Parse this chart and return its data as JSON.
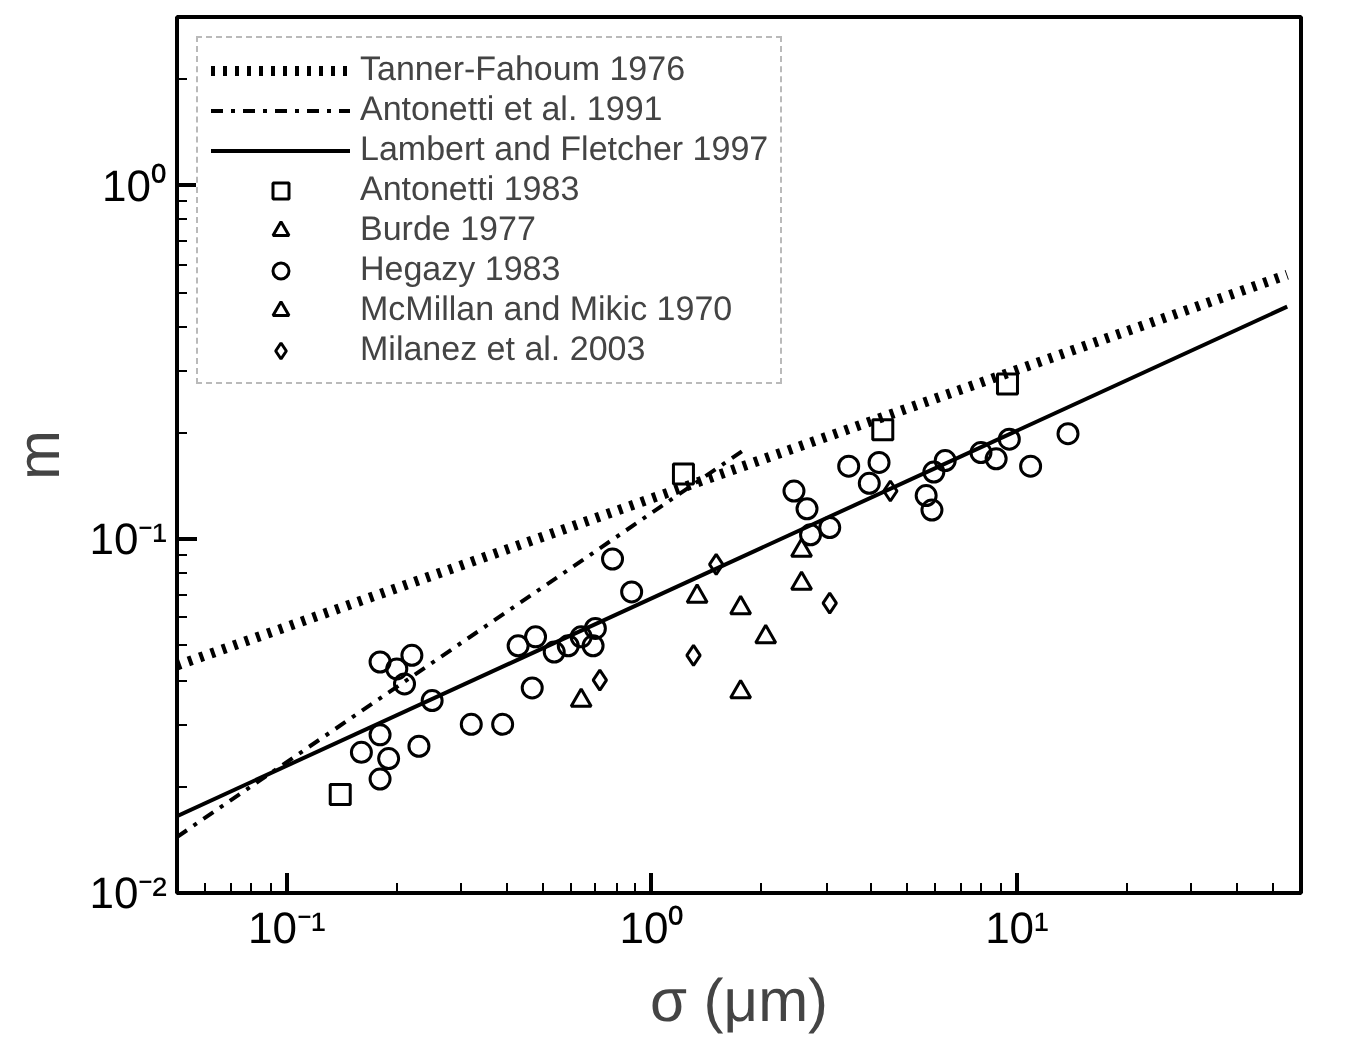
{
  "chart_data": {
    "type": "scatter",
    "xlabel": "σ (μm)",
    "ylabel": "m",
    "log": "xy",
    "grid": false,
    "legend": "top left",
    "xlim": [
      0.05,
      60
    ],
    "ylim": [
      0.01,
      3
    ],
    "xticks": [
      {
        "value": 0.1,
        "label": "10⁻¹"
      },
      {
        "value": 1,
        "label": "10⁰"
      },
      {
        "value": 10,
        "label": "10¹"
      }
    ],
    "yticks": [
      {
        "value": 0.01,
        "label": "10⁻²"
      },
      {
        "value": 0.1,
        "label": "10⁻¹"
      },
      {
        "value": 1,
        "label": "10⁰"
      }
    ],
    "series": [
      {
        "name": "Tanner-Fahoum 1976",
        "type": "line",
        "line_style": "dotted",
        "color": "#000000",
        "x": [
          0.05,
          55
        ],
        "values": [
          0.044,
          0.56
        ]
      },
      {
        "name": "Antonetti et al. 1991",
        "type": "line",
        "line_style": "dashdot",
        "color": "#000000",
        "x": [
          0.05,
          1.8
        ],
        "values": [
          0.0144,
          0.18
        ]
      },
      {
        "name": "Lambert and Fletcher 1997",
        "type": "line",
        "line_style": "solid",
        "color": "#000000",
        "x": [
          0.05,
          55
        ],
        "values": [
          0.0165,
          0.455
        ]
      },
      {
        "name": "Antonetti 1983",
        "marker": "square",
        "color": "#000000",
        "x": [
          0.14,
          1.22,
          4.29,
          9.42
        ],
        "values": [
          0.019,
          0.153,
          0.204,
          0.275
        ]
      },
      {
        "name": "Burde 1977",
        "marker": "triangle",
        "color": "#000000",
        "x": [
          1.33,
          0.64,
          2.57,
          2.57
        ],
        "values": [
          0.069,
          0.035,
          0.093,
          0.075
        ]
      },
      {
        "name": "Hegazy 1983",
        "marker": "circle",
        "color": "#000000",
        "x": [
          0.18,
          0.2,
          0.22,
          0.21,
          0.25,
          0.18,
          0.16,
          0.18,
          0.19,
          0.23,
          0.32,
          0.39,
          0.47,
          0.43,
          0.48,
          0.54,
          0.59,
          0.64,
          0.7,
          0.69,
          0.78,
          0.88,
          2.45,
          2.66,
          3.07,
          2.72,
          3.46,
          4.19,
          3.94,
          5.92,
          6.36,
          5.64,
          5.85,
          7.97,
          8.77,
          9.53,
          10.9,
          13.8
        ],
        "values": [
          0.045,
          0.043,
          0.047,
          0.039,
          0.035,
          0.028,
          0.025,
          0.021,
          0.024,
          0.026,
          0.03,
          0.03,
          0.038,
          0.05,
          0.053,
          0.048,
          0.05,
          0.053,
          0.056,
          0.05,
          0.088,
          0.071,
          0.137,
          0.122,
          0.108,
          0.103,
          0.161,
          0.165,
          0.144,
          0.155,
          0.167,
          0.133,
          0.121,
          0.176,
          0.169,
          0.192,
          0.161,
          0.199
        ]
      },
      {
        "name": "McMillan and Mikic 1970",
        "marker": "triangle",
        "color": "#000000",
        "x": [
          1.75,
          2.05,
          1.75
        ],
        "values": [
          0.064,
          0.053,
          0.037
        ]
      },
      {
        "name": "Milanez et al. 2003",
        "marker": "diamond",
        "color": "#000000",
        "x": [
          1.3,
          0.72,
          3.07,
          4.5,
          1.5
        ],
        "values": [
          0.047,
          0.04,
          0.066,
          0.137,
          0.085
        ]
      }
    ]
  }
}
